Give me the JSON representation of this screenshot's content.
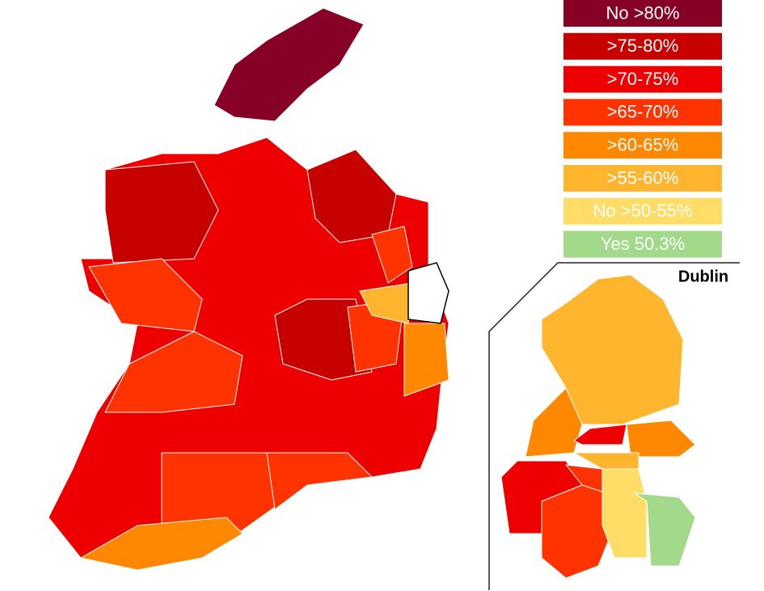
{
  "legend": [
    {
      "label": "No >80%",
      "color": "#870026"
    },
    {
      "label": ">75-80%",
      "color": "#c70000"
    },
    {
      "label": ">70-75%",
      "color": "#ee0000"
    },
    {
      "label": ">65-70%",
      "color": "#ff3300"
    },
    {
      "label": ">60-65%",
      "color": "#ff8800"
    },
    {
      "label": ">55-60%",
      "color": "#ffb52e"
    },
    {
      "label": "No >50-55%",
      "color": "#ffdd66"
    },
    {
      "label": "Yes 50.3%",
      "color": "#a3d98a"
    }
  ],
  "inset": {
    "title": "Dublin"
  }
}
